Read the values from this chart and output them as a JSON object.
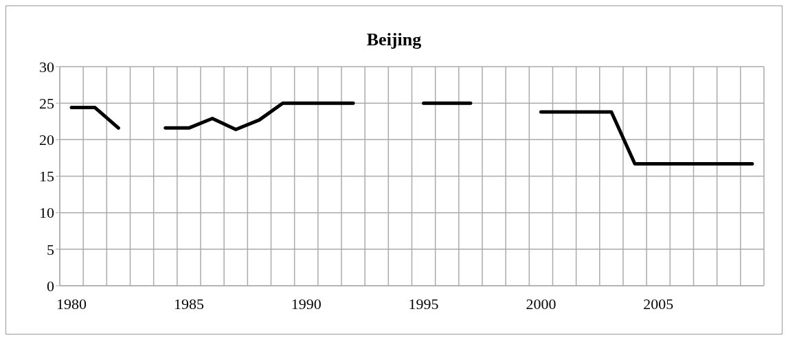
{
  "chart_data": {
    "type": "line",
    "title": "Beijing",
    "categories": [
      "1980",
      null,
      null,
      null,
      null,
      "1985",
      null,
      null,
      null,
      null,
      "1990",
      null,
      null,
      null,
      null,
      "1995",
      null,
      null,
      null,
      null,
      "2000",
      null,
      null,
      null,
      null,
      "2005",
      null,
      null,
      null,
      null
    ],
    "series": [
      {
        "color": "#000000",
        "values": [
          24.4,
          24.4,
          21.6,
          null,
          21.6,
          21.6,
          22.9,
          21.4,
          22.7,
          25,
          25,
          25,
          25,
          null,
          null,
          25,
          25,
          25,
          null,
          null,
          23.8,
          23.8,
          23.8,
          23.8,
          16.7,
          16.7,
          16.7,
          16.7,
          16.7,
          16.7
        ]
      }
    ],
    "ylim": [
      0,
      30
    ],
    "yticks": [
      0,
      5,
      10,
      15,
      20,
      25,
      30
    ],
    "grid": true,
    "marker": "none",
    "line_style": "solid"
  }
}
